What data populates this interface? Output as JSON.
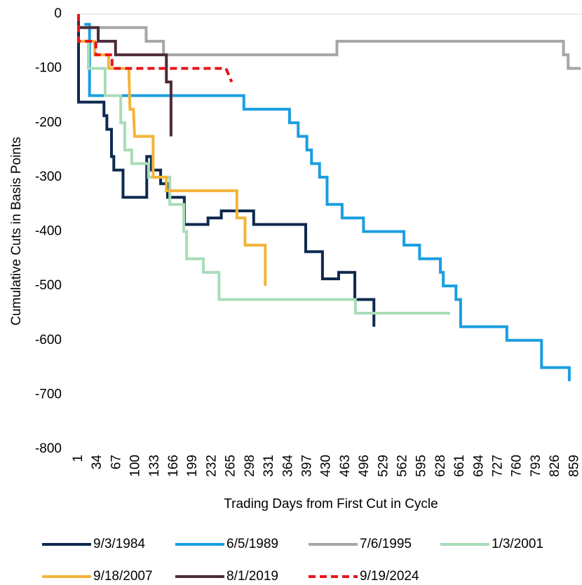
{
  "chart_data": {
    "type": "line",
    "y_label": "Cumulative Cuts in Basis Points",
    "x_label": "Trading Days from First Cut in Cycle",
    "xlim": [
      1,
      872
    ],
    "ylim": [
      -800,
      0
    ],
    "xticks": [
      1,
      34,
      67,
      100,
      133,
      166,
      199,
      232,
      265,
      298,
      331,
      364,
      397,
      430,
      463,
      496,
      529,
      562,
      595,
      628,
      661,
      694,
      727,
      760,
      793,
      826,
      859
    ],
    "yticks": [
      0,
      -100,
      -200,
      -300,
      -400,
      -500,
      -600,
      -700,
      -800
    ],
    "series": [
      {
        "name": "9/3/1984",
        "color": "#0d2a4f",
        "dashed": false,
        "x": [
          1,
          1,
          45,
          45,
          50,
          50,
          58,
          58,
          62,
          62,
          78,
          78,
          119,
          119,
          127,
          127,
          143,
          143,
          155,
          155,
          184,
          184,
          225,
          225,
          248,
          248,
          304,
          304,
          394,
          394,
          423,
          423,
          451,
          451,
          479,
          479,
          512,
          512
        ],
        "values": [
          0,
          -162,
          -162,
          -187,
          -187,
          -212,
          -212,
          -262,
          -262,
          -287,
          -287,
          -337,
          -337,
          -262,
          -262,
          -287,
          -287,
          -312,
          -312,
          -337,
          -337,
          -387,
          -387,
          -375,
          -375,
          -362,
          -362,
          -387,
          -387,
          -437,
          -437,
          -487,
          -487,
          -475,
          -475,
          -525,
          -525,
          -575
        ]
      },
      {
        "name": "6/5/1989",
        "color": "#1b9ee0",
        "dashed": false,
        "x": [
          11,
          20,
          20,
          287,
          287,
          366,
          366,
          381,
          381,
          396,
          396,
          404,
          404,
          418,
          418,
          431,
          431,
          457,
          457,
          494,
          494,
          564,
          564,
          591,
          591,
          627,
          627,
          632,
          632,
          654,
          654,
          662,
          662,
          742,
          742,
          802,
          802,
          850,
          850
        ],
        "values": [
          -19,
          -19,
          -150,
          -150,
          -175,
          -175,
          -200,
          -200,
          -225,
          -225,
          -250,
          -250,
          -275,
          -275,
          -300,
          -300,
          -350,
          -350,
          -375,
          -375,
          -400,
          -400,
          -425,
          -425,
          -450,
          -450,
          -475,
          -475,
          -500,
          -500,
          -525,
          -525,
          -575,
          -575,
          -600,
          -600,
          -650,
          -650,
          -675
        ]
      },
      {
        "name": "7/6/1995",
        "color": "#a6a6a6",
        "dashed": false,
        "x": [
          1,
          1,
          118,
          118,
          148,
          148,
          448,
          448,
          840,
          840,
          848,
          848,
          870
        ],
        "values": [
          0,
          -25,
          -25,
          -50,
          -50,
          -75,
          -75,
          -50,
          -50,
          -75,
          -75,
          -100,
          -100
        ]
      },
      {
        "name": "1/3/2001",
        "color": "#a9dcb8",
        "dashed": false,
        "x": [
          1,
          18,
          18,
          47,
          47,
          74,
          74,
          81,
          81,
          93,
          93,
          122,
          122,
          159,
          159,
          183,
          183,
          188,
          188,
          217,
          217,
          244,
          244,
          480,
          480,
          644,
          644
        ],
        "values": [
          -50,
          -50,
          -100,
          -100,
          -150,
          -150,
          -200,
          -200,
          -250,
          -250,
          -275,
          -275,
          -300,
          -300,
          -350,
          -350,
          -400,
          -400,
          -450,
          -450,
          -475,
          -475,
          -525,
          -525,
          -550,
          -550,
          -550
        ]
      },
      {
        "name": "9/18/2007",
        "color": "#f3b43a",
        "dashed": false,
        "x": [
          1,
          29,
          29,
          53,
          53,
          88,
          90,
          96,
          98,
          130,
          130,
          153,
          153,
          275,
          275,
          289,
          289,
          324,
          324
        ],
        "values": [
          -50,
          -50,
          -75,
          -75,
          -100,
          -100,
          -175,
          -175,
          -225,
          -225,
          -300,
          -300,
          -325,
          -325,
          -375,
          -375,
          -425,
          -425,
          -500
        ]
      },
      {
        "name": "8/1/2019",
        "color": "#4d2a3a",
        "dashed": false,
        "x": [
          1,
          1,
          35,
          35,
          65,
          65,
          153,
          153,
          161,
          161
        ],
        "values": [
          0,
          -25,
          -25,
          -50,
          -50,
          -75,
          -75,
          -125,
          -125,
          -225
        ]
      },
      {
        "name": "9/19/2024",
        "color": "#e8141b",
        "dashed": true,
        "x": [
          1,
          1,
          31,
          31,
          59,
          59,
          256,
          266
        ],
        "values": [
          0,
          -50,
          -50,
          -75,
          -75,
          -100,
          -100,
          -125
        ]
      }
    ]
  }
}
